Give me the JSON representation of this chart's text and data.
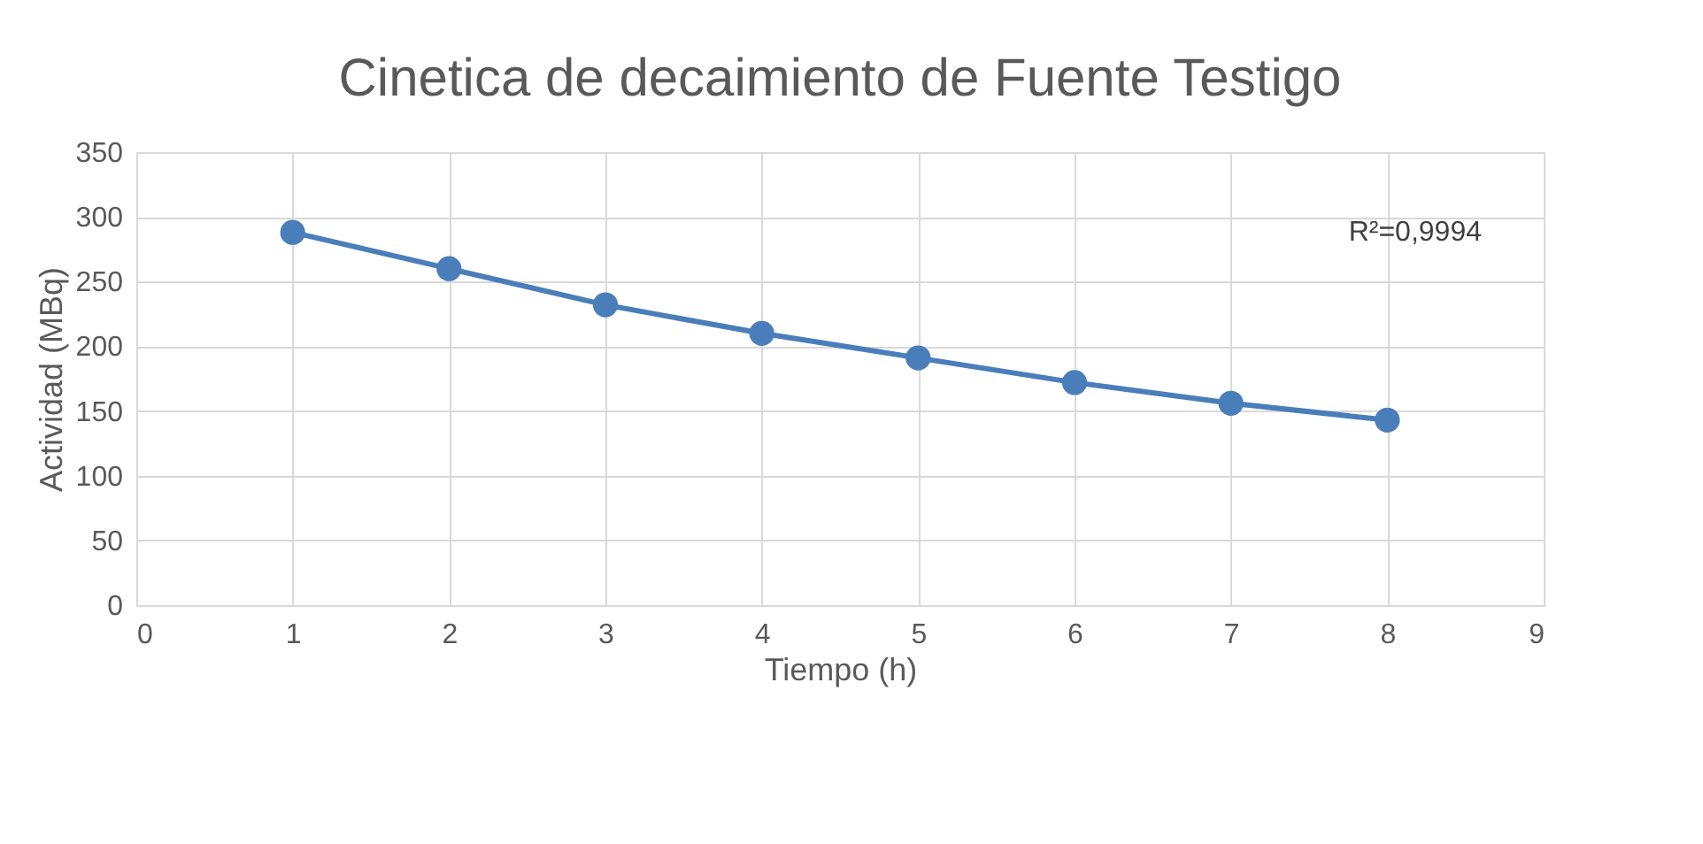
{
  "chart_data": {
    "type": "line",
    "title": "Cinetica de decaimiento de Fuente Testigo",
    "xlabel": "Tiempo (h)",
    "ylabel": "Actividad (MBq)",
    "x": [
      1,
      2,
      3,
      4,
      5,
      6,
      7,
      8
    ],
    "series": [
      {
        "color": "#4a7ebb",
        "values": [
          288,
          260,
          232,
          210,
          191,
          172,
          156,
          143
        ]
      }
    ],
    "xlim": [
      0,
      9
    ],
    "xticks": [
      0,
      1,
      2,
      3,
      4,
      5,
      6,
      7,
      8,
      9
    ],
    "ylim": [
      0,
      350
    ],
    "yticks": [
      0,
      50,
      100,
      150,
      200,
      250,
      300,
      350
    ],
    "grid": true,
    "marker": "circle",
    "line_style": "solid",
    "annotations": [
      "R²=0,9994"
    ]
  }
}
